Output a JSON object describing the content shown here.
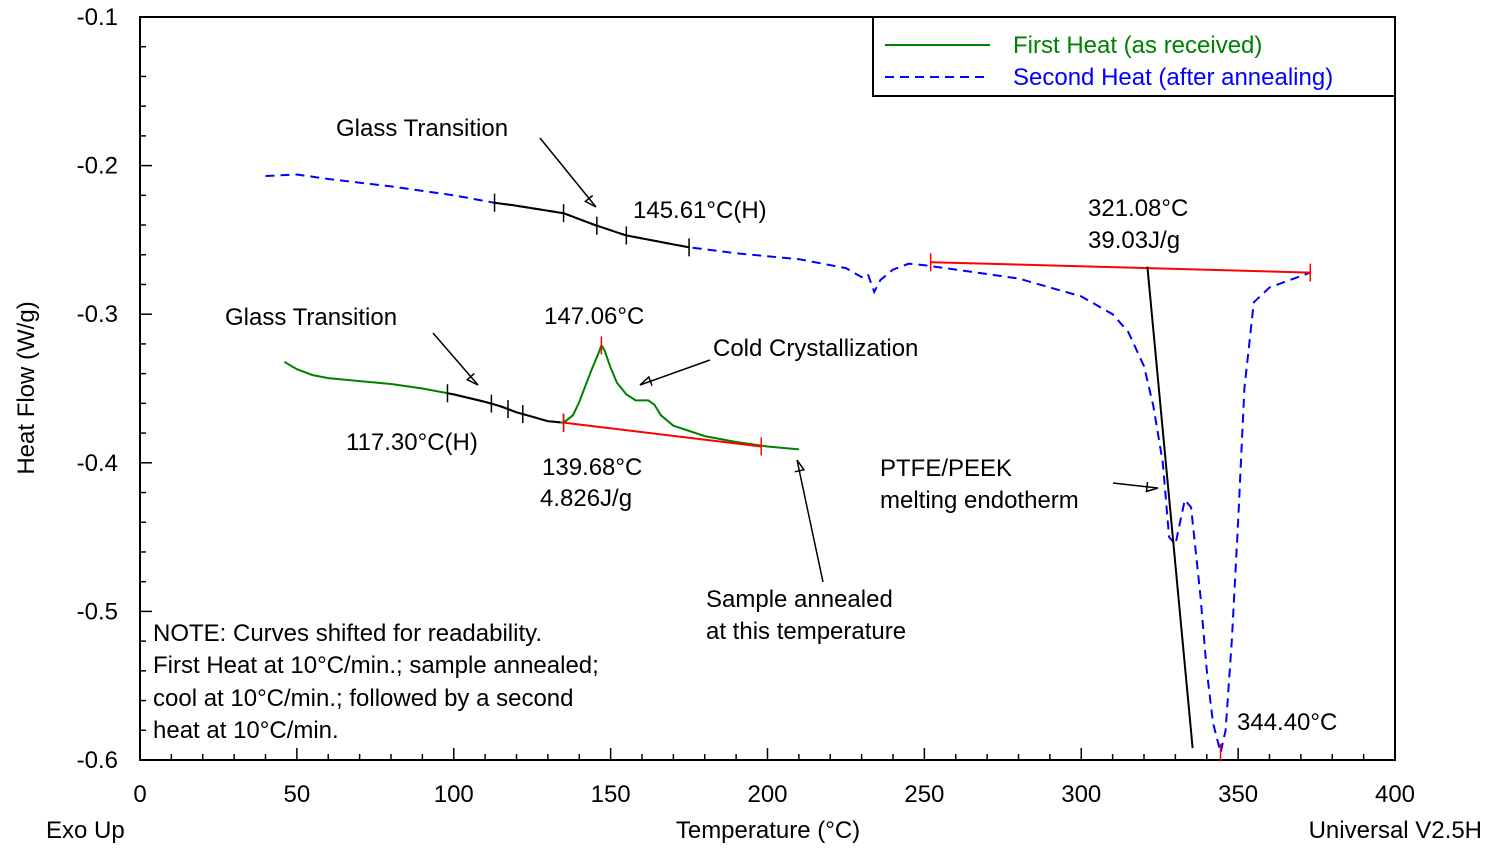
{
  "chart_data": {
    "type": "line",
    "xlabel": "Temperature (°C)",
    "ylabel": "Heat Flow (W/g)",
    "corner_left": "Exo Up",
    "corner_right": "Universal V2.5H",
    "xlim": [
      0,
      400
    ],
    "ylim": [
      -0.6,
      -0.1
    ],
    "x_ticks": [
      "0",
      "50",
      "100",
      "150",
      "200",
      "250",
      "300",
      "350",
      "400"
    ],
    "y_ticks": [
      "-0.1",
      "-0.2",
      "-0.3",
      "-0.4",
      "-0.5",
      "-0.6"
    ],
    "grid": false,
    "legend_position": "top-right",
    "colors": {
      "first": "#008000",
      "second": "#0000ff",
      "baseline": "#ff0000",
      "tangent": "#000000"
    },
    "series": [
      {
        "name": "First Heat (as received)",
        "style": "solid",
        "x": [
          46,
          50,
          55,
          60,
          70,
          80,
          90,
          100,
          110,
          115,
          120,
          125,
          130,
          135,
          138,
          140,
          142,
          144,
          146,
          147.06,
          148,
          150,
          152,
          155,
          158,
          160,
          162,
          164,
          166,
          170,
          180,
          190,
          200,
          210
        ],
        "y": [
          -0.332,
          -0.337,
          -0.341,
          -0.343,
          -0.345,
          -0.347,
          -0.35,
          -0.354,
          -0.359,
          -0.362,
          -0.366,
          -0.369,
          -0.372,
          -0.373,
          -0.368,
          -0.359,
          -0.348,
          -0.337,
          -0.327,
          -0.321,
          -0.324,
          -0.336,
          -0.346,
          -0.354,
          -0.358,
          -0.358,
          -0.358,
          -0.361,
          -0.368,
          -0.375,
          -0.382,
          -0.386,
          -0.389,
          -0.391
        ]
      },
      {
        "name": "Second Heat (after annealing)",
        "style": "dashed",
        "x": [
          40,
          50,
          60,
          80,
          100,
          113,
          120,
          135,
          145,
          155,
          165,
          175,
          190,
          210,
          225,
          230,
          232,
          234,
          236,
          240,
          245,
          250,
          260,
          280,
          300,
          310,
          315,
          320,
          323,
          326,
          328,
          330,
          333,
          335,
          338,
          340,
          342,
          344.4,
          346,
          348,
          350,
          352,
          355,
          360,
          373
        ],
        "y": [
          -0.207,
          -0.206,
          -0.209,
          -0.214,
          -0.22,
          -0.225,
          -0.227,
          -0.232,
          -0.24,
          -0.247,
          -0.251,
          -0.255,
          -0.259,
          -0.263,
          -0.269,
          -0.275,
          -0.273,
          -0.285,
          -0.277,
          -0.27,
          -0.266,
          -0.267,
          -0.27,
          -0.276,
          -0.288,
          -0.3,
          -0.312,
          -0.335,
          -0.362,
          -0.4,
          -0.45,
          -0.455,
          -0.425,
          -0.43,
          -0.49,
          -0.54,
          -0.575,
          -0.595,
          -0.58,
          -0.52,
          -0.44,
          -0.35,
          -0.292,
          -0.282,
          -0.272
        ]
      }
    ],
    "annotations": [
      {
        "text": "Glass Transition"
      },
      {
        "text": "145.61°C(H)"
      },
      {
        "text": "321.08°C"
      },
      {
        "text": "39.03J/g"
      },
      {
        "text": "Glass Transition"
      },
      {
        "text": "147.06°C"
      },
      {
        "text": "Cold Crystallization"
      },
      {
        "text": "117.30°C(H)"
      },
      {
        "text": "139.68°C"
      },
      {
        "text": "4.826J/g"
      },
      {
        "text": "PTFE/PEEK"
      },
      {
        "text": "melting endotherm"
      },
      {
        "text": "344.40°C"
      },
      {
        "text": "Sample annealed"
      },
      {
        "text": "at this temperature"
      },
      {
        "text": "NOTE: Curves shifted for readability."
      },
      {
        "text": "First Heat at 10°C/min.; sample annealed;"
      },
      {
        "text": "cool at 10°C/min.; followed by a second"
      },
      {
        "text": "heat at 10°C/min."
      }
    ]
  }
}
